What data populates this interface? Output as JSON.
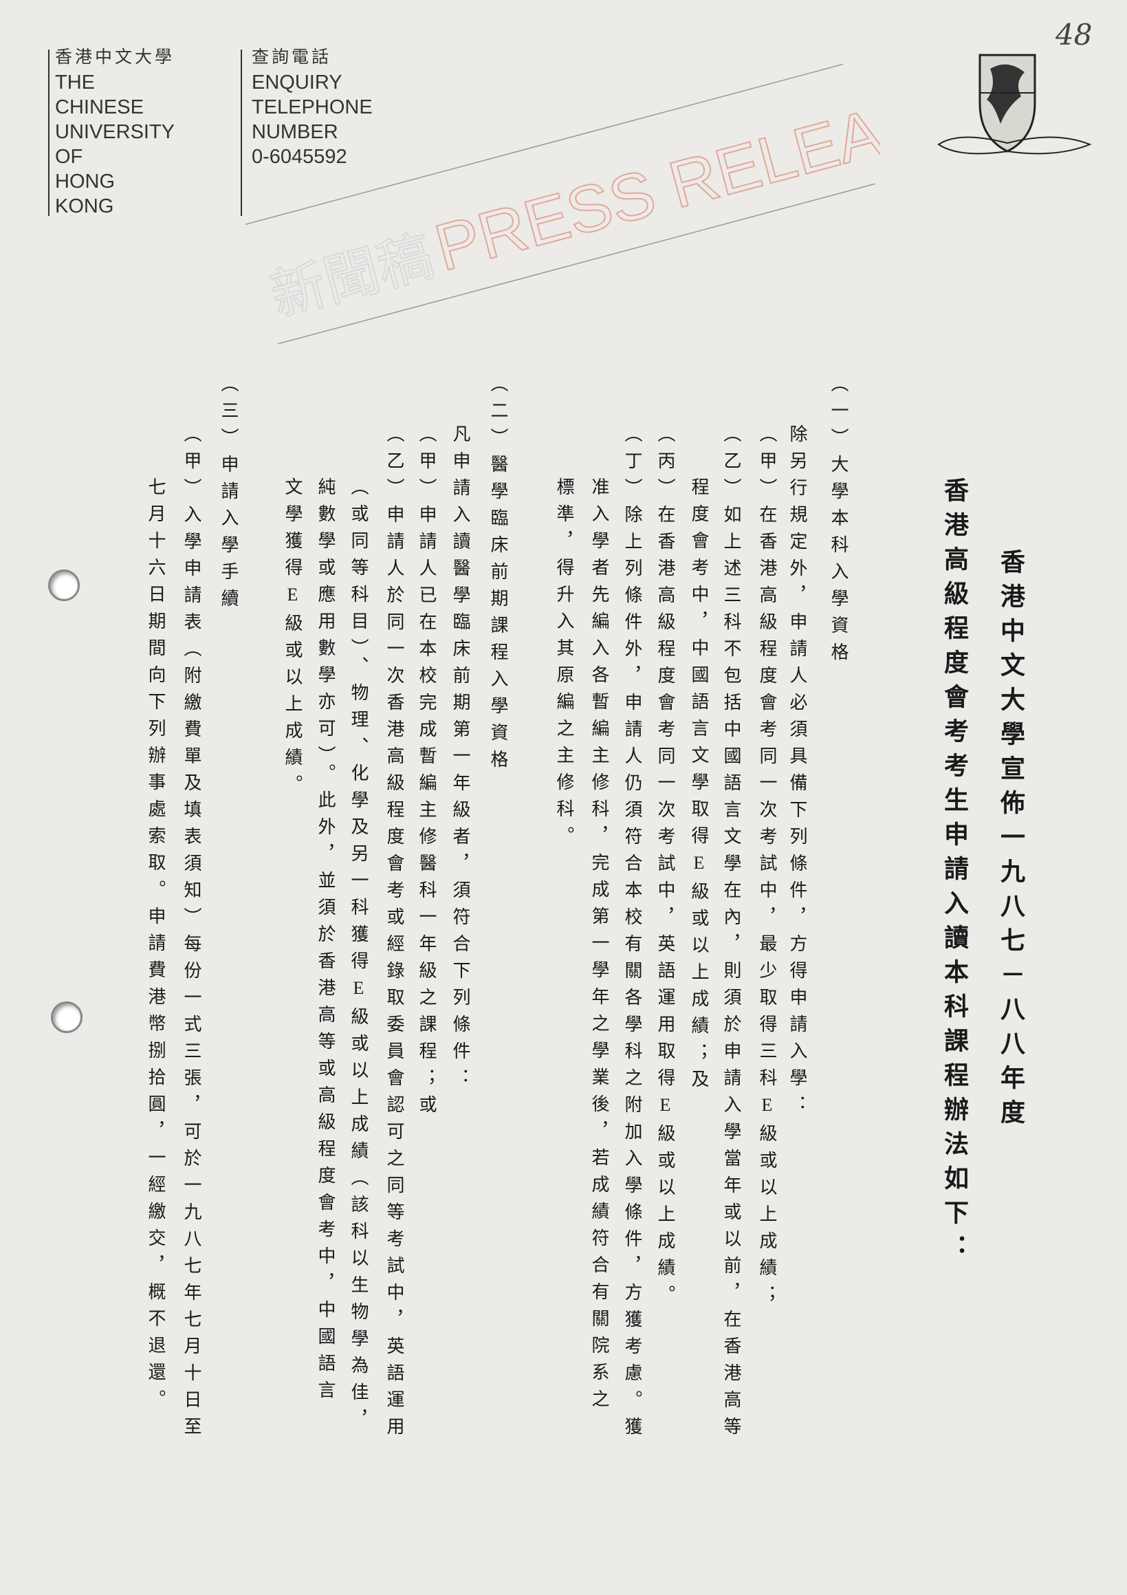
{
  "header": {
    "university_zh": "香港中文大學",
    "university_en": [
      "THE",
      "CHINESE",
      "UNIVERSITY",
      "OF",
      "HONG",
      "KONG"
    ],
    "enquiry_zh": "查詢電話",
    "enquiry_en": [
      "ENQUIRY",
      "TELEPHONE",
      "NUMBER"
    ],
    "phone": "0-6045592",
    "page_number": "48",
    "watermark_zh": "新聞稿",
    "watermark_en": "PRESS RELEASE"
  },
  "title": [
    "香港中文大學宣佈一九八七－八八年度",
    "香港高級程度會考考生申請入讀本科課程辦法如下："
  ],
  "body": [
    "（一）大學本科入學資格",
    "除另行規定外，申請人必須具備下列條件，方得申請入學：",
    "（甲）在香港高級程度會考同一次考試中，最少取得三科E級或以上成績；",
    "（乙）如上述三科不包括中國語言文學在內，則須於申請入學當年或以前，在香港高等",
    "程度會考中，中國語言文學取得E級或以上成績；及",
    "（丙）在香港高級程度會考同一次考試中，英語運用取得E級或以上成績。",
    "（丁）除上列條件外，申請人仍須符合本校有關各學科之附加入學條件，方獲考慮。獲",
    "准入學者先編入各暫編主修科，完成第一學年之學業後，若成績符合有關院系之",
    "標準，得升入其原編之主修科。",
    "（二）醫學臨床前期課程入學資格",
    "凡申請入讀醫學臨床前期第一年級者，須符合下列條件：",
    "（甲）申請人已在本校完成暫編主修醫科一年級之課程；或",
    "（乙）申請人於同一次香港高級程度會考或經錄取委員會認可之同等考試中，英語運用",
    "（或同等科目）、物理、化學及另一科獲得E級或以上成績（該科以生物學為佳，",
    "純數學或應用數學亦可）。此外，並須於香港高等或高級程度會考中，中國語言",
    "文學獲得E級或以上成績。",
    "（三）申請入學手續",
    "（甲）入學申請表（附繳費單及填表須知）每份一式三張，可於一九八七年七月十日至",
    "七月十六日期間向下列辦事處索取。申請費港幣捌拾圓，一經繳交，概不退還。"
  ]
}
